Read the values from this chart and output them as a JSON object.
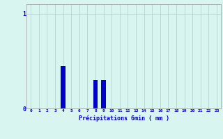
{
  "categories": [
    0,
    1,
    2,
    3,
    4,
    5,
    6,
    7,
    8,
    9,
    10,
    11,
    12,
    13,
    14,
    15,
    16,
    17,
    18,
    19,
    20,
    21,
    22,
    23
  ],
  "values": [
    0,
    0,
    0,
    0,
    0.45,
    0,
    0,
    0,
    0.3,
    0.3,
    0,
    0,
    0,
    0,
    0,
    0,
    0,
    0,
    0,
    0,
    0,
    0,
    0,
    0
  ],
  "bar_color": "#0000cc",
  "background_color": "#d8f5f0",
  "grid_color": "#b0cfc8",
  "axis_color": "#999999",
  "text_color": "#0000cc",
  "xlabel": "Précipitations 6min ( mm )",
  "ylim": [
    0,
    1.1
  ],
  "xlim": [
    -0.5,
    23.5
  ],
  "yticks": [
    0,
    1
  ],
  "ytick_labels": [
    "0",
    "1"
  ],
  "bar_width": 0.6
}
